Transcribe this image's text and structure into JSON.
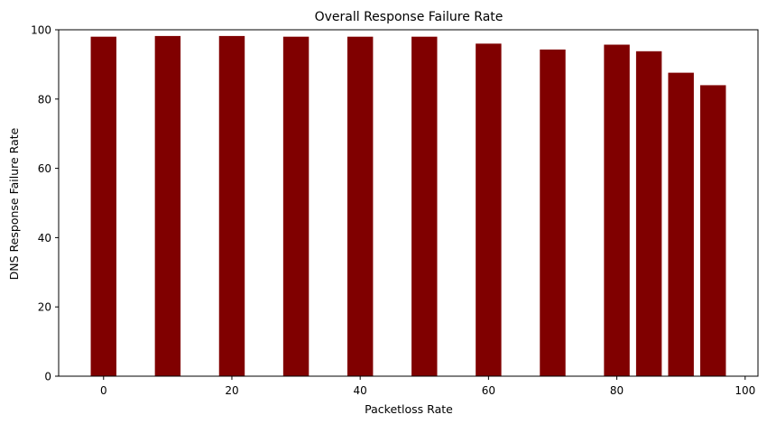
{
  "chart_data": {
    "type": "bar",
    "title": "Overall Response Failure Rate",
    "xlabel": "Packetloss Rate",
    "ylabel": "DNS Response Failure Rate",
    "x": [
      0,
      10,
      20,
      30,
      40,
      50,
      60,
      70,
      80,
      85,
      90,
      95
    ],
    "values": [
      98.0,
      98.2,
      98.2,
      98.0,
      98.0,
      98.0,
      96.0,
      94.3,
      95.7,
      93.8,
      87.6,
      84.0
    ],
    "xlim": [
      -7,
      102
    ],
    "ylim": [
      0,
      100
    ],
    "xticks": [
      0,
      20,
      40,
      60,
      80,
      100
    ],
    "yticks": [
      0,
      20,
      40,
      60,
      80,
      100
    ],
    "grid": false,
    "legend": "none",
    "colors": {
      "bar": "#800000",
      "axis": "#000000"
    }
  }
}
